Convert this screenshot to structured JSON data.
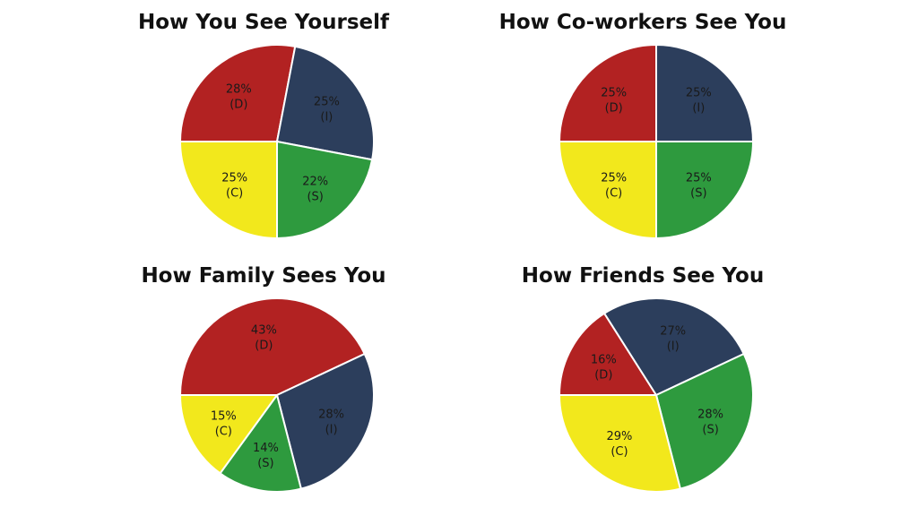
{
  "chart_data": [
    {
      "type": "pie",
      "title": "How You See Yourself",
      "slices": [
        {
          "label": "(D)",
          "value": 28,
          "value_text": "28%",
          "color": "#b22222"
        },
        {
          "label": "(I)",
          "value": 25,
          "value_text": "25%",
          "color": "#2c3e5c"
        },
        {
          "label": "(S)",
          "value": 22,
          "value_text": "22%",
          "color": "#2e9a3e"
        },
        {
          "label": "(C)",
          "value": 25,
          "value_text": "25%",
          "color": "#f2e81c"
        }
      ]
    },
    {
      "type": "pie",
      "title": "How Co-workers See You",
      "slices": [
        {
          "label": "(D)",
          "value": 25,
          "value_text": "25%",
          "color": "#b22222"
        },
        {
          "label": "(I)",
          "value": 25,
          "value_text": "25%",
          "color": "#2c3e5c"
        },
        {
          "label": "(S)",
          "value": 25,
          "value_text": "25%",
          "color": "#2e9a3e"
        },
        {
          "label": "(C)",
          "value": 25,
          "value_text": "25%",
          "color": "#f2e81c"
        }
      ]
    },
    {
      "type": "pie",
      "title": "How Family Sees You",
      "slices": [
        {
          "label": "(D)",
          "value": 43,
          "value_text": "43%",
          "color": "#b22222"
        },
        {
          "label": "(I)",
          "value": 28,
          "value_text": "28%",
          "color": "#2c3e5c"
        },
        {
          "label": "(S)",
          "value": 14,
          "value_text": "14%",
          "color": "#2e9a3e"
        },
        {
          "label": "(C)",
          "value": 15,
          "value_text": "15%",
          "color": "#f2e81c"
        }
      ]
    },
    {
      "type": "pie",
      "title": "How Friends See You",
      "slices": [
        {
          "label": "(D)",
          "value": 16,
          "value_text": "16%",
          "color": "#b22222"
        },
        {
          "label": "(I)",
          "value": 27,
          "value_text": "27%",
          "color": "#2c3e5c"
        },
        {
          "label": "(S)",
          "value": 28,
          "value_text": "28%",
          "color": "#2e9a3e"
        },
        {
          "label": "(C)",
          "value": 29,
          "value_text": "29%",
          "color": "#f2e81c"
        }
      ]
    }
  ]
}
